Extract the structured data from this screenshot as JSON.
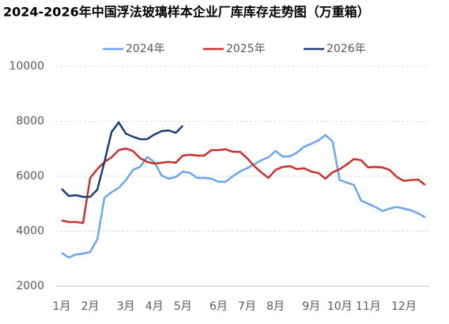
{
  "chart_data": {
    "type": "line",
    "title": "2024-2026年中国浮法玻璃样本企业厂库库存走势图（万重箱）",
    "categories": [
      "1月",
      null,
      null,
      null,
      "2月",
      null,
      null,
      null,
      null,
      "3月",
      null,
      null,
      null,
      "4月",
      null,
      null,
      null,
      "5月",
      null,
      null,
      null,
      null,
      "6月",
      null,
      null,
      null,
      "7月",
      null,
      null,
      null,
      "8月",
      null,
      null,
      null,
      null,
      "9月",
      null,
      null,
      null,
      "10月",
      null,
      null,
      null,
      "11月",
      null,
      null,
      null,
      null,
      "12月",
      null,
      null,
      null
    ],
    "series": [
      {
        "name": "2024年",
        "color": "#6aa5ef",
        "values": [
          3210,
          3040,
          3150,
          3180,
          3240,
          3700,
          5220,
          5420,
          5570,
          5860,
          6230,
          6340,
          6700,
          6520,
          6030,
          5910,
          5970,
          6170,
          6120,
          5940,
          5940,
          5910,
          5800,
          5800,
          6000,
          6170,
          6290,
          6430,
          6580,
          6690,
          6920,
          6720,
          6720,
          6860,
          7070,
          7180,
          7300,
          7500,
          7270,
          5860,
          5770,
          5680,
          5110,
          5000,
          4880,
          4730,
          4820,
          4880,
          4820,
          4760,
          4650,
          4500
        ]
      },
      {
        "name": "2025年",
        "color": "#c9302c",
        "values": [
          4390,
          4330,
          4330,
          4300,
          5940,
          6260,
          6520,
          6690,
          6950,
          7010,
          6920,
          6660,
          6520,
          6460,
          6490,
          6520,
          6490,
          6750,
          6780,
          6750,
          6750,
          6950,
          6950,
          6980,
          6890,
          6890,
          6660,
          6370,
          6140,
          5940,
          6230,
          6340,
          6370,
          6260,
          6290,
          6170,
          6120,
          5910,
          6140,
          6260,
          6430,
          6630,
          6580,
          6320,
          6340,
          6320,
          6230,
          5970,
          5830,
          5860,
          5880,
          5680
        ]
      },
      {
        "name": "2026年",
        "color": "#1c3d78",
        "values": [
          5540,
          5280,
          5310,
          5250,
          5250,
          5510,
          6520,
          7610,
          7960,
          7550,
          7440,
          7350,
          7350,
          7520,
          7640,
          7670,
          7580,
          7840,
          null,
          null,
          null,
          null,
          null,
          null,
          null,
          null,
          null,
          null,
          null,
          null,
          null,
          null,
          null,
          null,
          null,
          null,
          null,
          null,
          null,
          null,
          null,
          null,
          null,
          null,
          null,
          null,
          null,
          null,
          null,
          null,
          null,
          null
        ]
      }
    ],
    "ylim": [
      2000,
      10000
    ],
    "yticks": [
      2000,
      4000,
      6000,
      8000,
      10000
    ],
    "grid": true,
    "legend": "top"
  }
}
